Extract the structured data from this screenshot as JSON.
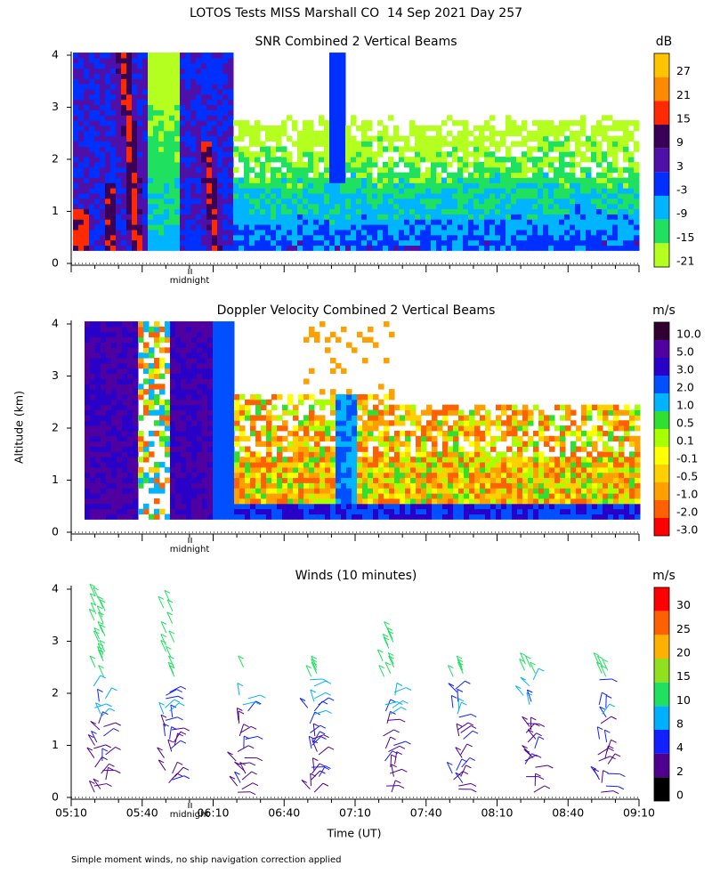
{
  "title": "LOTOS Tests MISS Marshall CO  14 Sep 2021 Day 257",
  "y_axis_label": "Altitude (km)",
  "x_axis_label": "Time (UT)",
  "midnight_label": "midnight",
  "footnote": "Simple moment winds, no ship navigation correction applied",
  "xticks": [
    "05:10",
    "05:40",
    "06:10",
    "06:40",
    "07:10",
    "07:40",
    "08:10",
    "08:40",
    "09:10"
  ],
  "chart_data": [
    {
      "type": "contour",
      "title": "SNR Combined 2 Vertical Beams",
      "unit": "dB",
      "ylim": [
        0,
        4
      ],
      "yticks": [
        0,
        1,
        2,
        3,
        4
      ],
      "levels": [
        27,
        21,
        15,
        9,
        3,
        -3,
        -9,
        -15,
        -21
      ],
      "colors": [
        "#ffc400",
        "#ff8a00",
        "#ff2a00",
        "#3a0058",
        "#4e10a8",
        "#0030ff",
        "#00b4ff",
        "#20e060",
        "#b4ff20"
      ]
    },
    {
      "type": "contour",
      "title": "Doppler Velocity Combined 2 Vertical Beams",
      "unit": "m/s",
      "ylim": [
        0,
        4
      ],
      "yticks": [
        0,
        1,
        2,
        3,
        4
      ],
      "levels": [
        {
          "value": 10,
          "label": "10.0"
        },
        {
          "value": 5,
          "label": "5.0"
        },
        {
          "value": 3,
          "label": "3.0"
        },
        {
          "value": 2,
          "label": "2.0"
        },
        {
          "value": 1,
          "label": "1.0"
        },
        0.5,
        0.1,
        -0.1,
        -0.5,
        {
          "value": -1,
          "label": "-1.0"
        },
        {
          "value": -2,
          "label": "-2.0"
        },
        {
          "value": -3,
          "label": "-3.0"
        }
      ],
      "colors": [
        "#300030",
        "#5000a0",
        "#2800c8",
        "#0050ff",
        "#00b4ff",
        "#30e030",
        "#a8ff00",
        "#ffff00",
        "#ffd000",
        "#ffa000",
        "#ff6000",
        "#ff0000"
      ]
    },
    {
      "type": "barbs",
      "title": "Winds (10 minutes)",
      "unit": "m/s",
      "ylim": [
        0,
        4
      ],
      "yticks": [
        0,
        1,
        2,
        3,
        4
      ],
      "levels": [
        30,
        25,
        20,
        15,
        10,
        8,
        4,
        2,
        0
      ],
      "colors": [
        "#ff0000",
        "#ff6000",
        "#ffb000",
        "#90e020",
        "#20e060",
        "#00b0ff",
        "#1020ff",
        "#500090",
        "#000000"
      ]
    }
  ]
}
